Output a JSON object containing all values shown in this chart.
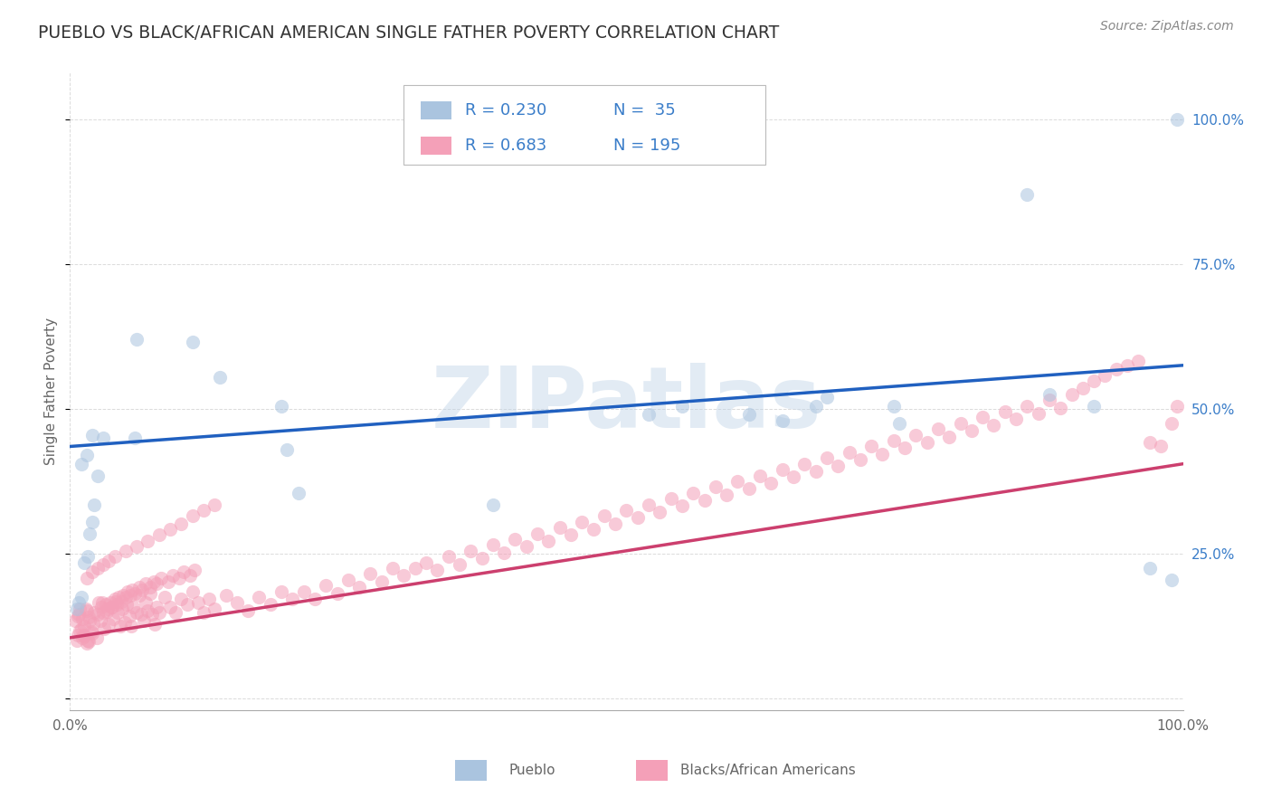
{
  "title": "PUEBLO VS BLACK/AFRICAN AMERICAN SINGLE FATHER POVERTY CORRELATION CHART",
  "source": "Source: ZipAtlas.com",
  "ylabel": "Single Father Poverty",
  "yright_ticks": [
    1.0,
    0.75,
    0.5,
    0.25
  ],
  "yright_labels": [
    "100.0%",
    "75.0%",
    "50.0%",
    "25.0%"
  ],
  "xleft_label": "0.0%",
  "xright_label": "100.0%",
  "pueblo_label": "Pueblo",
  "black_label": "Blacks/African Americans",
  "legend_R1": "R = 0.230",
  "legend_N1": "N =  35",
  "legend_R2": "R = 0.683",
  "legend_N2": "N = 195",
  "watermark": "ZIPatlas",
  "pueblo_dot_color": "#aac4df",
  "pueblo_line_color": "#2060c0",
  "black_dot_color": "#f4a0b8",
  "black_line_color": "#cc3f6e",
  "legend_text_color": "#3a7dc9",
  "background_color": "#ffffff",
  "grid_color": "#cccccc",
  "title_color": "#333333",
  "axis_label_color": "#666666",
  "source_color": "#888888",
  "dot_size": 120,
  "dot_alpha": 0.55,
  "pueblo_line": [
    0.0,
    0.435,
    1.0,
    0.575
  ],
  "black_line": [
    0.0,
    0.105,
    1.0,
    0.405
  ],
  "pueblo_x": [
    0.006,
    0.008,
    0.01,
    0.013,
    0.016,
    0.018,
    0.02,
    0.022,
    0.025,
    0.01,
    0.015,
    0.02,
    0.03,
    0.06,
    0.058,
    0.11,
    0.135,
    0.19,
    0.195,
    0.205,
    0.38,
    0.52,
    0.55,
    0.61,
    0.64,
    0.67,
    0.68,
    0.74,
    0.745,
    0.86,
    0.88,
    0.92,
    0.97,
    0.99,
    0.995
  ],
  "pueblo_y": [
    0.155,
    0.165,
    0.175,
    0.235,
    0.245,
    0.285,
    0.305,
    0.335,
    0.385,
    0.405,
    0.42,
    0.455,
    0.45,
    0.62,
    0.45,
    0.615,
    0.555,
    0.505,
    0.43,
    0.355,
    0.335,
    0.49,
    0.505,
    0.49,
    0.48,
    0.505,
    0.52,
    0.505,
    0.475,
    0.87,
    0.525,
    0.505,
    0.225,
    0.205,
    1.0
  ],
  "black_x": [
    0.005,
    0.007,
    0.009,
    0.011,
    0.013,
    0.015,
    0.017,
    0.019,
    0.021,
    0.006,
    0.008,
    0.01,
    0.012,
    0.014,
    0.016,
    0.018,
    0.02,
    0.022,
    0.024,
    0.007,
    0.009,
    0.011,
    0.013,
    0.015,
    0.017,
    0.025,
    0.027,
    0.029,
    0.031,
    0.033,
    0.035,
    0.037,
    0.039,
    0.041,
    0.043,
    0.045,
    0.047,
    0.049,
    0.051,
    0.053,
    0.055,
    0.057,
    0.06,
    0.062,
    0.064,
    0.066,
    0.068,
    0.07,
    0.072,
    0.074,
    0.076,
    0.078,
    0.08,
    0.085,
    0.09,
    0.095,
    0.1,
    0.105,
    0.11,
    0.115,
    0.12,
    0.125,
    0.13,
    0.14,
    0.15,
    0.16,
    0.17,
    0.18,
    0.19,
    0.2,
    0.21,
    0.22,
    0.23,
    0.24,
    0.25,
    0.26,
    0.27,
    0.28,
    0.29,
    0.3,
    0.31,
    0.32,
    0.33,
    0.34,
    0.35,
    0.36,
    0.37,
    0.38,
    0.39,
    0.4,
    0.41,
    0.42,
    0.43,
    0.44,
    0.45,
    0.46,
    0.47,
    0.48,
    0.49,
    0.5,
    0.51,
    0.52,
    0.53,
    0.54,
    0.55,
    0.56,
    0.57,
    0.58,
    0.59,
    0.6,
    0.61,
    0.62,
    0.63,
    0.64,
    0.65,
    0.66,
    0.67,
    0.68,
    0.69,
    0.7,
    0.71,
    0.72,
    0.73,
    0.74,
    0.75,
    0.76,
    0.77,
    0.78,
    0.79,
    0.8,
    0.81,
    0.82,
    0.83,
    0.84,
    0.85,
    0.86,
    0.87,
    0.88,
    0.89,
    0.9,
    0.91,
    0.92,
    0.93,
    0.94,
    0.95,
    0.96,
    0.97,
    0.98,
    0.99,
    0.995,
    0.026,
    0.028,
    0.03,
    0.032,
    0.034,
    0.036,
    0.038,
    0.04,
    0.042,
    0.044,
    0.046,
    0.048,
    0.05,
    0.052,
    0.054,
    0.056,
    0.058,
    0.062,
    0.065,
    0.068,
    0.072,
    0.075,
    0.078,
    0.082,
    0.088,
    0.092,
    0.098,
    0.102,
    0.108,
    0.112,
    0.015,
    0.02,
    0.025,
    0.03,
    0.035,
    0.04,
    0.05,
    0.06,
    0.07,
    0.08,
    0.09,
    0.1,
    0.11,
    0.12,
    0.13
  ],
  "black_y": [
    0.135,
    0.11,
    0.155,
    0.105,
    0.125,
    0.095,
    0.14,
    0.115,
    0.13,
    0.1,
    0.145,
    0.12,
    0.11,
    0.155,
    0.1,
    0.135,
    0.112,
    0.148,
    0.105,
    0.142,
    0.118,
    0.138,
    0.108,
    0.152,
    0.098,
    0.145,
    0.135,
    0.165,
    0.12,
    0.15,
    0.128,
    0.158,
    0.138,
    0.168,
    0.148,
    0.125,
    0.155,
    0.132,
    0.162,
    0.142,
    0.125,
    0.158,
    0.148,
    0.178,
    0.145,
    0.135,
    0.165,
    0.152,
    0.182,
    0.145,
    0.128,
    0.158,
    0.148,
    0.175,
    0.158,
    0.148,
    0.172,
    0.162,
    0.185,
    0.165,
    0.148,
    0.172,
    0.155,
    0.178,
    0.165,
    0.152,
    0.175,
    0.162,
    0.185,
    0.172,
    0.185,
    0.172,
    0.195,
    0.182,
    0.205,
    0.192,
    0.215,
    0.202,
    0.225,
    0.212,
    0.225,
    0.235,
    0.222,
    0.245,
    0.232,
    0.255,
    0.242,
    0.265,
    0.252,
    0.275,
    0.262,
    0.285,
    0.272,
    0.295,
    0.282,
    0.305,
    0.292,
    0.315,
    0.302,
    0.325,
    0.312,
    0.335,
    0.322,
    0.345,
    0.332,
    0.355,
    0.342,
    0.365,
    0.352,
    0.375,
    0.362,
    0.385,
    0.372,
    0.395,
    0.382,
    0.405,
    0.392,
    0.415,
    0.402,
    0.425,
    0.412,
    0.435,
    0.422,
    0.445,
    0.432,
    0.455,
    0.442,
    0.465,
    0.452,
    0.475,
    0.462,
    0.485,
    0.472,
    0.495,
    0.482,
    0.505,
    0.492,
    0.515,
    0.502,
    0.525,
    0.535,
    0.548,
    0.558,
    0.568,
    0.575,
    0.582,
    0.442,
    0.435,
    0.475,
    0.505,
    0.165,
    0.158,
    0.148,
    0.162,
    0.155,
    0.165,
    0.158,
    0.172,
    0.162,
    0.175,
    0.168,
    0.178,
    0.175,
    0.185,
    0.178,
    0.188,
    0.182,
    0.192,
    0.188,
    0.198,
    0.192,
    0.202,
    0.198,
    0.208,
    0.202,
    0.212,
    0.208,
    0.218,
    0.212,
    0.222,
    0.208,
    0.218,
    0.225,
    0.232,
    0.238,
    0.245,
    0.255,
    0.262,
    0.272,
    0.282,
    0.292,
    0.302,
    0.315,
    0.325,
    0.335
  ]
}
